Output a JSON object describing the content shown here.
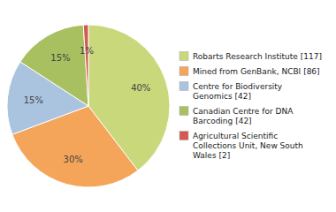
{
  "chart_data": {
    "type": "pie",
    "categories": [
      "Robarts Research Institute [117]",
      "Mined from GenBank, NCBI [86]",
      "Centre for Biodiversity\nGenomics [42]",
      "Canadian Centre for DNA\nBarcoding [42]",
      "Agricultural Scientific\nCollections Unit, New South\nWales [2]"
    ],
    "values": [
      40,
      30,
      15,
      15,
      1
    ],
    "value_labels": [
      "40%",
      "30%",
      "15%",
      "15%",
      "1%"
    ],
    "colors": [
      "#c8d87a",
      "#f5a55a",
      "#aac4e0",
      "#a8c060",
      "#d45a50"
    ],
    "data_labels": true,
    "legend": "right"
  }
}
